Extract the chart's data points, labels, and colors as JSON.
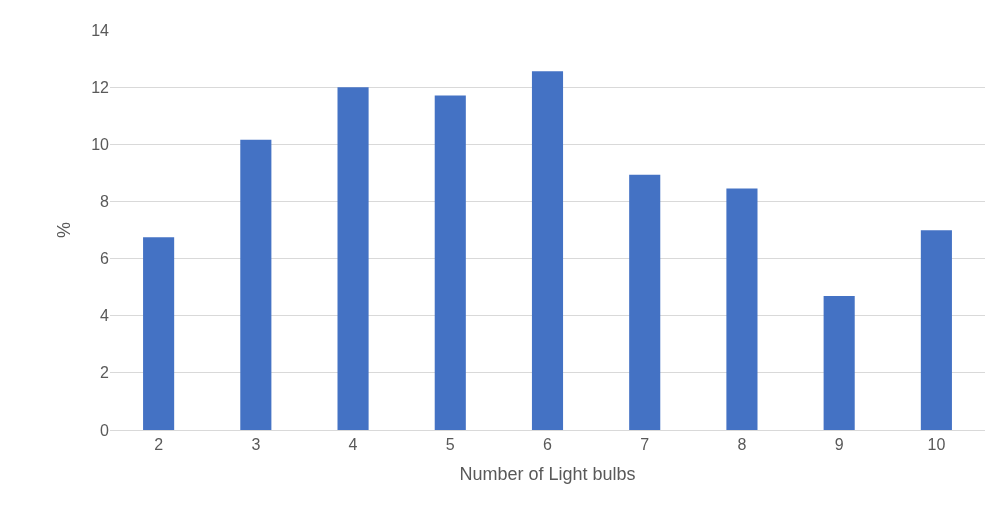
{
  "chart_data": {
    "type": "bar",
    "xlabel": "Number of Light bulbs",
    "ylabel": "%",
    "categories": [
      "2",
      "3",
      "4",
      "5",
      "6",
      "7",
      "8",
      "9",
      "10"
    ],
    "values": [
      6.75,
      10.16,
      12.0,
      11.71,
      12.56,
      8.93,
      8.45,
      4.69,
      6.99
    ],
    "color": "#4472c4",
    "ylim": [
      0,
      14
    ],
    "yticks": [
      0,
      2,
      4,
      6,
      8,
      10,
      12,
      14
    ],
    "grid": "y"
  }
}
